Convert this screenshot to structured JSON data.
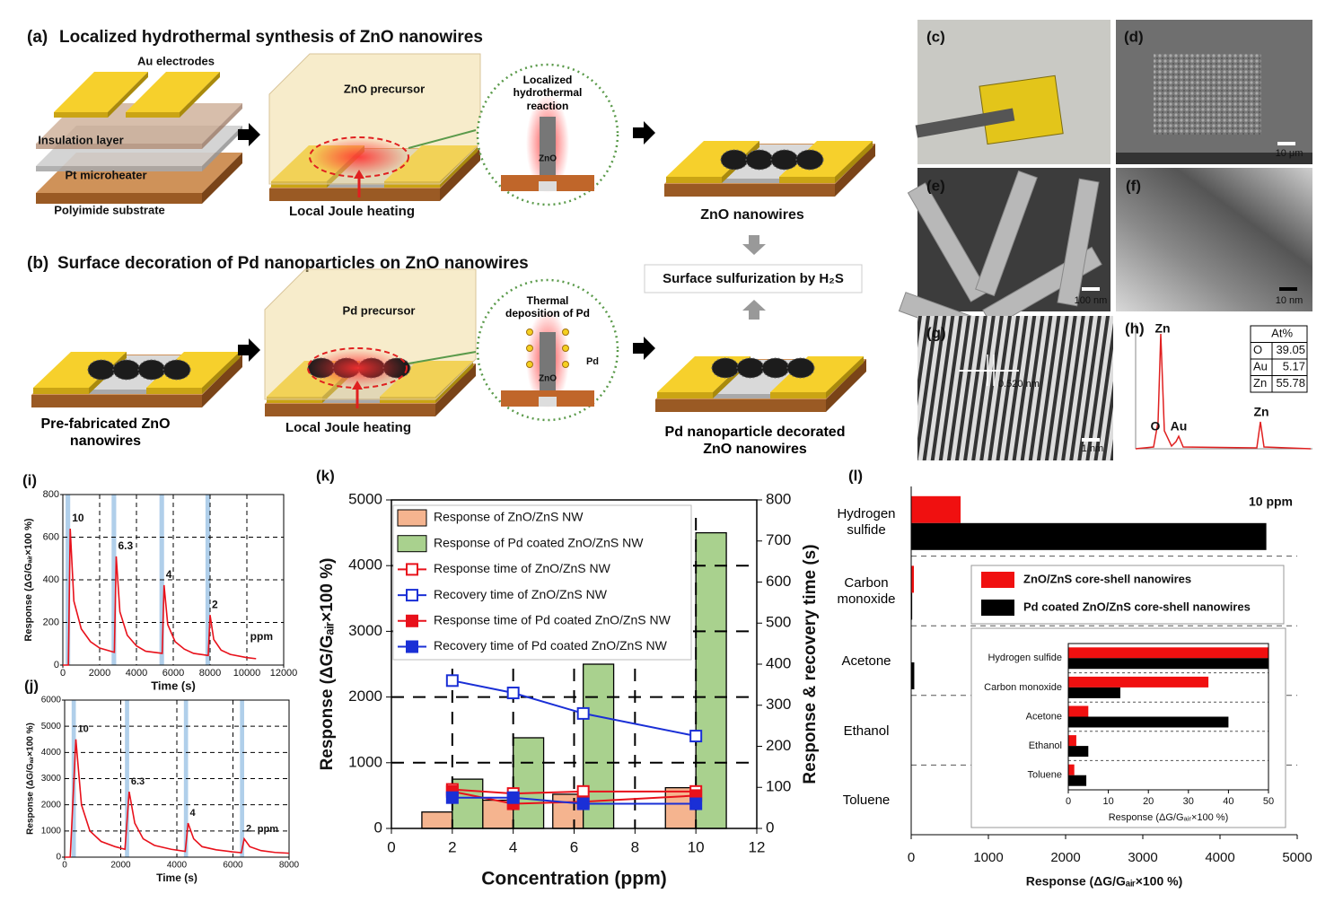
{
  "panel_a": {
    "label": "(a)",
    "title": "Localized hydrothermal synthesis of ZnO nanowires",
    "au_electrodes": "Au electrodes",
    "insulation_layer": "Insulation  layer",
    "pt_microheater": "Pt microheater",
    "polyimide_substrate": "Polyimide  substrate",
    "precursor": "ZnO  precursor",
    "heating": "Local Joule heating",
    "reaction": "Localized hydrothermal reaction",
    "zno": "ZnO",
    "result": "ZnO nanowires"
  },
  "sulfurization": "Surface sulfurization by H₂S",
  "panel_b": {
    "label": "(b)",
    "title": "Surface decoration of Pd nanoparticles on ZnO nanowires",
    "start": "Pre-fabricated ZnO nanowires",
    "precursor": "Pd precursor",
    "heating": "Local Joule heating",
    "reaction": "Thermal deposition of Pd",
    "pd": "Pd",
    "zno": "ZnO",
    "result": "Pd nanoparticle decorated ZnO nanowires"
  },
  "panel_c": {
    "label": "(c)"
  },
  "panel_d": {
    "label": "(d)",
    "scale": "10 μm"
  },
  "panel_e": {
    "label": "(e)",
    "scale": "100 nm"
  },
  "panel_f": {
    "label": "(f)",
    "scale": "10 nm"
  },
  "panel_g": {
    "label": "(g)",
    "spacing": "0.520 nm",
    "scale": "1 nm"
  },
  "panel_h": {
    "label": "(h)",
    "peaks": [
      "Zn",
      "O",
      "Au",
      "Zn"
    ],
    "table": {
      "header": "At%",
      "rows": [
        [
          "O",
          "39.05"
        ],
        [
          "Au",
          "5.17"
        ],
        [
          "Zn",
          "55.78"
        ]
      ]
    }
  },
  "chart_data": [
    {
      "type": "line",
      "label": "(i)",
      "xlabel": "Time (s)",
      "ylabel": "Response (ΔG/Gₐᵢᵣ×100 %)",
      "xlim": [
        0,
        12000
      ],
      "xticks": [
        0,
        2000,
        4000,
        6000,
        8000,
        10000,
        12000
      ],
      "ylim": [
        0,
        800
      ],
      "yticks": [
        0,
        200,
        400,
        600,
        800
      ],
      "grid": true,
      "exposures": [
        [
          150,
          400
        ],
        [
          2650,
          2900
        ],
        [
          5250,
          5500
        ],
        [
          7750,
          8000
        ]
      ],
      "exposure_color": "#9cc3e5",
      "peak_labels": [
        "10",
        "6.3",
        "4",
        "2"
      ],
      "unit_label": "ppm",
      "series": [
        {
          "color": "#e8111b",
          "x": [
            0,
            300,
            400,
            600,
            1000,
            1500,
            2000,
            2800,
            2900,
            3100,
            3500,
            4000,
            4500,
            5400,
            5500,
            5700,
            6100,
            6600,
            7100,
            7900,
            8000,
            8200,
            8600,
            9100,
            10000,
            10500
          ],
          "values": [
            0,
            0,
            640,
            300,
            170,
            110,
            80,
            60,
            510,
            250,
            140,
            90,
            65,
            55,
            375,
            190,
            110,
            75,
            55,
            45,
            235,
            120,
            70,
            50,
            35,
            30
          ]
        }
      ]
    },
    {
      "type": "line",
      "label": "(j)",
      "xlabel": "Time (s)",
      "ylabel": "Response (ΔG/Gₐᵢᵣ×100 %)",
      "xlim": [
        0,
        8000
      ],
      "xticks": [
        0,
        2000,
        4000,
        6000,
        8000
      ],
      "ylim": [
        0,
        6000
      ],
      "yticks": [
        0,
        1000,
        2000,
        3000,
        4000,
        5000,
        6000
      ],
      "grid": true,
      "exposures": [
        [
          250,
          400
        ],
        [
          2150,
          2300
        ],
        [
          4250,
          4400
        ],
        [
          6250,
          6400
        ]
      ],
      "exposure_color": "#9cc3e5",
      "peak_labels": [
        "10",
        "6.3",
        "4",
        "2"
      ],
      "unit_label": "ppm",
      "series": [
        {
          "color": "#e8111b",
          "x": [
            0,
            200,
            400,
            600,
            900,
            1300,
            1800,
            2150,
            2300,
            2500,
            2800,
            3200,
            3800,
            4300,
            4400,
            4600,
            4900,
            5400,
            6000,
            6300,
            6400,
            6600,
            7000,
            7500,
            8000
          ],
          "values": [
            0,
            0,
            4500,
            2000,
            1000,
            600,
            400,
            300,
            2500,
            1300,
            700,
            450,
            300,
            220,
            1300,
            700,
            400,
            280,
            200,
            170,
            700,
            400,
            250,
            180,
            150
          ]
        }
      ]
    },
    {
      "type": "combo",
      "label": "(k)",
      "xlabel": "Concentration (ppm)",
      "ylabel": "Response (ΔG/Gₐᵢᵣ×100 %)",
      "y2label": "Response & recovery time (s)",
      "xlim": [
        0,
        12
      ],
      "xticks": [
        0,
        2,
        4,
        6,
        8,
        10,
        12
      ],
      "ylim": [
        0,
        5000
      ],
      "yticks": [
        0,
        1000,
        2000,
        3000,
        4000,
        5000
      ],
      "y2lim": [
        0,
        800
      ],
      "y2ticks": [
        0,
        100,
        200,
        300,
        400,
        500,
        600,
        700,
        800
      ],
      "grid": true,
      "x": [
        2,
        4,
        6.3,
        10
      ],
      "series": [
        {
          "name": "Response of ZnO/ZnS NW",
          "type": "bar",
          "color": "#f5b48f",
          "values": [
            250,
            430,
            520,
            620
          ]
        },
        {
          "name": "Response of Pd coated ZnO/ZnS NW",
          "type": "bar",
          "color": "#a9d18e",
          "values": [
            750,
            1380,
            2500,
            4500
          ]
        },
        {
          "name": "Response time of ZnO/ZnS NW",
          "type": "line",
          "axis": "y2",
          "marker": "open",
          "color": "#e8111b",
          "values": [
            95,
            85,
            90,
            90
          ]
        },
        {
          "name": "Recovery time of ZnO/ZnS NW",
          "type": "line",
          "axis": "y2",
          "marker": "open",
          "color": "#1a2fd6",
          "values": [
            360,
            330,
            280,
            225
          ]
        },
        {
          "name": "Response time of Pd coated ZnO/ZnS NW",
          "type": "line",
          "axis": "y2",
          "marker": "filled",
          "color": "#e8111b",
          "values": [
            90,
            60,
            65,
            80
          ]
        },
        {
          "name": "Recovery time of Pd coated ZnO/ZnS NW",
          "type": "line",
          "axis": "y2",
          "marker": "filled",
          "color": "#1a2fd6",
          "values": [
            75,
            75,
            60,
            60
          ]
        }
      ]
    },
    {
      "type": "barh",
      "label": "(l)",
      "xlabel": "Response (ΔG/Gₐᵢᵣ×100 %)",
      "annotation": "10 ppm",
      "categories": [
        "Hydrogen sulfide",
        "Carbon monoxide",
        "Acetone",
        "Ethanol",
        "Toluene"
      ],
      "xlim": [
        0,
        5000
      ],
      "xticks": [
        0,
        1000,
        2000,
        3000,
        4000,
        5000
      ],
      "series": [
        {
          "name": "ZnO/ZnS core-shell nanowires",
          "color": "#f01010",
          "values": [
            640,
            35,
            5,
            2,
            1.5
          ]
        },
        {
          "name": "Pd coated ZnO/ZnS core-shell nanowires",
          "color": "#000000",
          "values": [
            4600,
            13,
            40,
            5,
            4.5
          ]
        }
      ],
      "inset": {
        "xlim": [
          0,
          50
        ],
        "xticks": [
          0,
          10,
          20,
          30,
          40,
          50
        ]
      }
    }
  ]
}
